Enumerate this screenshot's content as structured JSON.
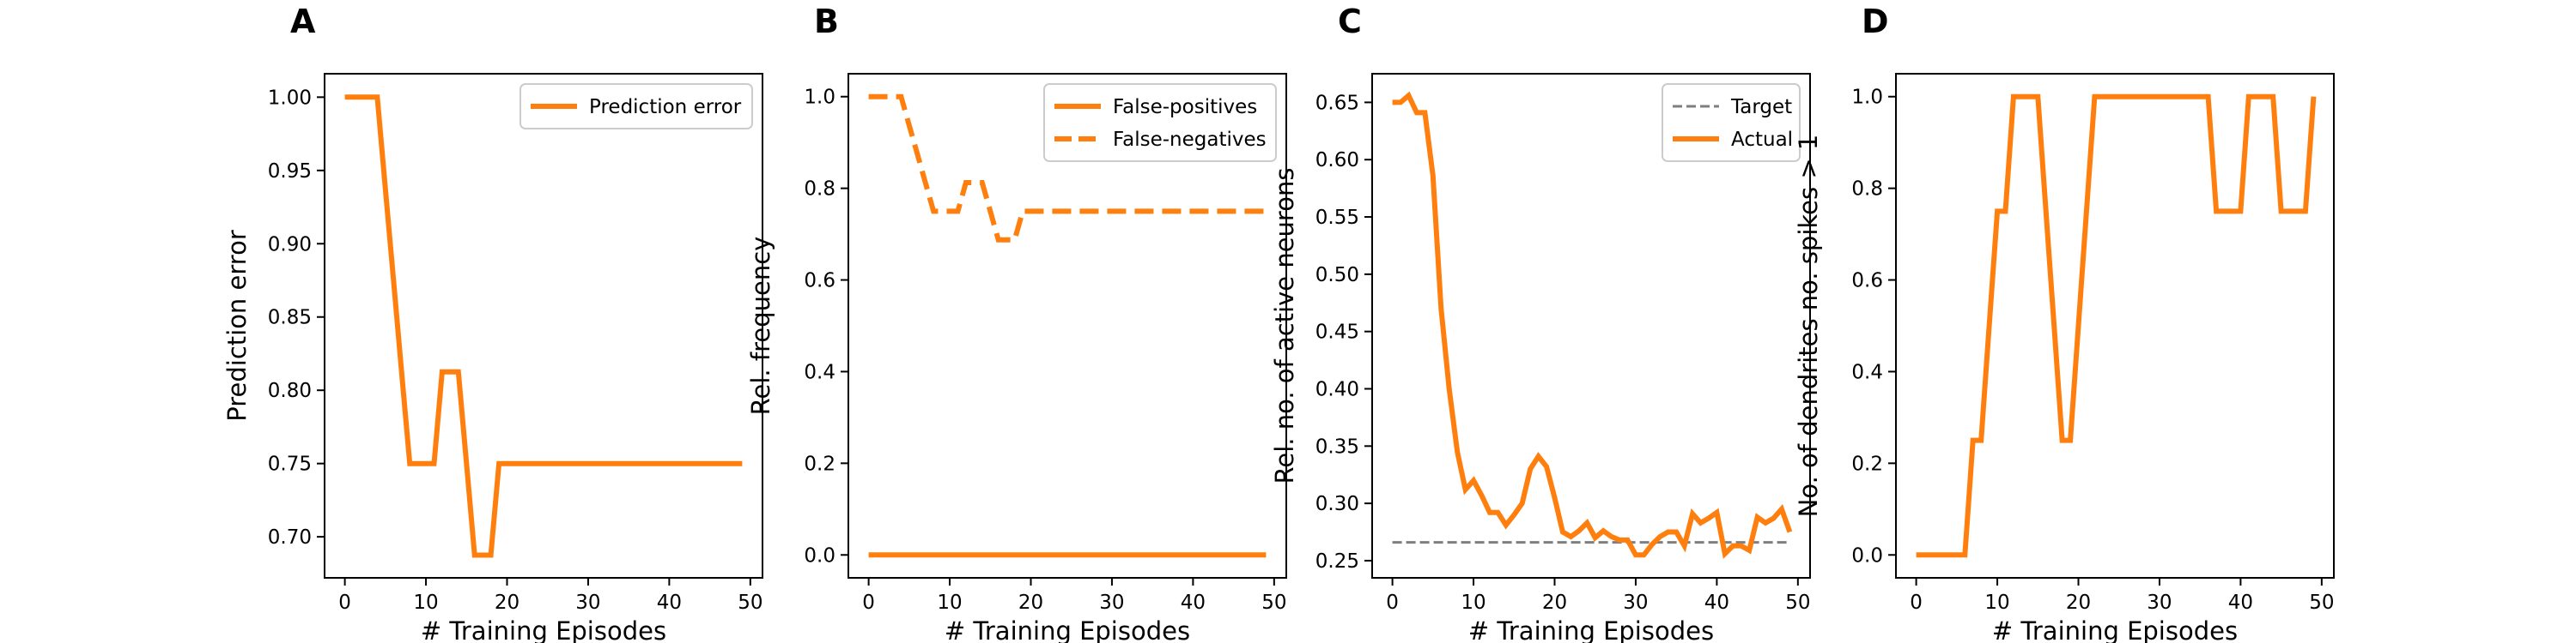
{
  "chart_data": [
    {
      "panel": "A",
      "type": "line",
      "xlabel": "# Training Episodes",
      "ylabel": "Prediction error",
      "xlim": [
        -2.5,
        51.5
      ],
      "ylim": [
        0.672,
        1.016
      ],
      "xticks": [
        0,
        10,
        20,
        30,
        40,
        50
      ],
      "yticks": [
        0.7,
        0.75,
        0.8,
        0.85,
        0.9,
        0.95,
        1.0
      ],
      "ytick_labels": [
        "0.70",
        "0.75",
        "0.80",
        "0.85",
        "0.90",
        "0.95",
        "1.00"
      ],
      "legend_position": "top-right",
      "x": [
        0,
        1,
        2,
        3,
        4,
        5,
        6,
        7,
        8,
        9,
        10,
        11,
        12,
        13,
        14,
        15,
        16,
        17,
        18,
        19,
        20,
        21,
        22,
        23,
        24,
        25,
        26,
        27,
        28,
        29,
        30,
        31,
        32,
        33,
        34,
        35,
        36,
        37,
        38,
        39,
        40,
        41,
        42,
        43,
        44,
        45,
        46,
        47,
        48,
        49
      ],
      "series": [
        {
          "name": "Prediction error",
          "color": "#ff7f0e",
          "style": "solid",
          "values": [
            1,
            1,
            1,
            1,
            1,
            0.9375,
            0.875,
            0.8125,
            0.75,
            0.75,
            0.75,
            0.75,
            0.8125,
            0.8125,
            0.8125,
            0.75,
            0.6875,
            0.6875,
            0.6875,
            0.75,
            0.75,
            0.75,
            0.75,
            0.75,
            0.75,
            0.75,
            0.75,
            0.75,
            0.75,
            0.75,
            0.75,
            0.75,
            0.75,
            0.75,
            0.75,
            0.75,
            0.75,
            0.75,
            0.75,
            0.75,
            0.75,
            0.75,
            0.75,
            0.75,
            0.75,
            0.75,
            0.75,
            0.75,
            0.75,
            0.75
          ]
        }
      ]
    },
    {
      "panel": "B",
      "type": "line",
      "xlabel": "# Training Episodes",
      "ylabel": "Rel. frequency",
      "xlim": [
        -2.5,
        51.5
      ],
      "ylim": [
        -0.05,
        1.05
      ],
      "xticks": [
        0,
        10,
        20,
        30,
        40,
        50
      ],
      "yticks": [
        0.0,
        0.2,
        0.4,
        0.6,
        0.8,
        1.0
      ],
      "ytick_labels": [
        "0.0",
        "0.2",
        "0.4",
        "0.6",
        "0.8",
        "1.0"
      ],
      "legend_position": "top-right",
      "x": [
        0,
        1,
        2,
        3,
        4,
        5,
        6,
        7,
        8,
        9,
        10,
        11,
        12,
        13,
        14,
        15,
        16,
        17,
        18,
        19,
        20,
        21,
        22,
        23,
        24,
        25,
        26,
        27,
        28,
        29,
        30,
        31,
        32,
        33,
        34,
        35,
        36,
        37,
        38,
        39,
        40,
        41,
        42,
        43,
        44,
        45,
        46,
        47,
        48,
        49
      ],
      "series": [
        {
          "name": "False-positives",
          "color": "#ff7f0e",
          "style": "solid",
          "values": [
            0,
            0,
            0,
            0,
            0,
            0,
            0,
            0,
            0,
            0,
            0,
            0,
            0,
            0,
            0,
            0,
            0,
            0,
            0,
            0,
            0,
            0,
            0,
            0,
            0,
            0,
            0,
            0,
            0,
            0,
            0,
            0,
            0,
            0,
            0,
            0,
            0,
            0,
            0,
            0,
            0,
            0,
            0,
            0,
            0,
            0,
            0,
            0,
            0,
            0
          ]
        },
        {
          "name": "False-negatives",
          "color": "#ff7f0e",
          "style": "dashed",
          "values": [
            1,
            1,
            1,
            1,
            1,
            0.9375,
            0.875,
            0.8125,
            0.75,
            0.75,
            0.75,
            0.75,
            0.8125,
            0.8125,
            0.8125,
            0.75,
            0.6875,
            0.6875,
            0.6875,
            0.75,
            0.75,
            0.75,
            0.75,
            0.75,
            0.75,
            0.75,
            0.75,
            0.75,
            0.75,
            0.75,
            0.75,
            0.75,
            0.75,
            0.75,
            0.75,
            0.75,
            0.75,
            0.75,
            0.75,
            0.75,
            0.75,
            0.75,
            0.75,
            0.75,
            0.75,
            0.75,
            0.75,
            0.75,
            0.75,
            0.75
          ]
        }
      ]
    },
    {
      "panel": "C",
      "type": "line",
      "xlabel": "# Training Episodes",
      "ylabel": "Rel. no. of active neurons",
      "xlim": [
        -2.5,
        51.5
      ],
      "ylim": [
        0.235,
        0.675
      ],
      "xticks": [
        0,
        10,
        20,
        30,
        40,
        50
      ],
      "yticks": [
        0.25,
        0.3,
        0.35,
        0.4,
        0.45,
        0.5,
        0.55,
        0.6,
        0.65
      ],
      "ytick_labels": [
        "0.25",
        "0.30",
        "0.35",
        "0.40",
        "0.45",
        "0.50",
        "0.55",
        "0.60",
        "0.65"
      ],
      "legend_position": "top-right",
      "x": [
        0,
        1,
        2,
        3,
        4,
        5,
        6,
        7,
        8,
        9,
        10,
        11,
        12,
        13,
        14,
        15,
        16,
        17,
        18,
        19,
        20,
        21,
        22,
        23,
        24,
        25,
        26,
        27,
        28,
        29,
        30,
        31,
        32,
        33,
        34,
        35,
        36,
        37,
        38,
        39,
        40,
        41,
        42,
        43,
        44,
        45,
        46,
        47,
        48,
        49
      ],
      "series": [
        {
          "name": "Target",
          "color": "#7f7f7f",
          "style": "dashed",
          "values": [
            0.266,
            0.266,
            0.266,
            0.266,
            0.266,
            0.266,
            0.266,
            0.266,
            0.266,
            0.266,
            0.266,
            0.266,
            0.266,
            0.266,
            0.266,
            0.266,
            0.266,
            0.266,
            0.266,
            0.266,
            0.266,
            0.266,
            0.266,
            0.266,
            0.266,
            0.266,
            0.266,
            0.266,
            0.266,
            0.266,
            0.266,
            0.266,
            0.266,
            0.266,
            0.266,
            0.266,
            0.266,
            0.266,
            0.266,
            0.266,
            0.266,
            0.266,
            0.266,
            0.266,
            0.266,
            0.266,
            0.266,
            0.266,
            0.266,
            0.266
          ]
        },
        {
          "name": "Actual",
          "color": "#ff7f0e",
          "style": "solid",
          "values": [
            0.65,
            0.65,
            0.656,
            0.641,
            0.641,
            0.586,
            0.47,
            0.4,
            0.345,
            0.312,
            0.32,
            0.307,
            0.292,
            0.292,
            0.281,
            0.29,
            0.3,
            0.33,
            0.341,
            0.332,
            0.305,
            0.275,
            0.271,
            0.276,
            0.283,
            0.27,
            0.276,
            0.271,
            0.268,
            0.268,
            0.255,
            0.255,
            0.264,
            0.271,
            0.275,
            0.275,
            0.263,
            0.291,
            0.283,
            0.287,
            0.292,
            0.256,
            0.263,
            0.263,
            0.259,
            0.288,
            0.283,
            0.287,
            0.295,
            0.275
          ]
        }
      ]
    },
    {
      "panel": "D",
      "type": "line",
      "xlabel": "# Training Episodes",
      "ylabel": "No. of dendrites no. spikes > 1",
      "xlim": [
        -2.5,
        51.5
      ],
      "ylim": [
        -0.05,
        1.05
      ],
      "xticks": [
        0,
        10,
        20,
        30,
        40,
        50
      ],
      "yticks": [
        0.0,
        0.2,
        0.4,
        0.6,
        0.8,
        1.0
      ],
      "ytick_labels": [
        "0.0",
        "0.2",
        "0.4",
        "0.6",
        "0.8",
        "1.0"
      ],
      "x": [
        0,
        1,
        2,
        3,
        4,
        5,
        6,
        7,
        8,
        9,
        10,
        11,
        12,
        13,
        14,
        15,
        16,
        17,
        18,
        19,
        20,
        21,
        22,
        23,
        24,
        25,
        26,
        27,
        28,
        29,
        30,
        31,
        32,
        33,
        34,
        35,
        36,
        37,
        38,
        39,
        40,
        41,
        42,
        43,
        44,
        45,
        46,
        47,
        48,
        49
      ],
      "series": [
        {
          "color": "#ff7f0e",
          "style": "solid",
          "values": [
            0,
            0,
            0,
            0,
            0,
            0,
            0,
            0.25,
            0.25,
            0.5,
            0.75,
            0.75,
            1,
            1,
            1,
            1,
            0.75,
            0.5,
            0.25,
            0.25,
            0.5,
            0.75,
            1,
            1,
            1,
            1,
            1,
            1,
            1,
            1,
            1,
            1,
            1,
            1,
            1,
            1,
            1,
            0.75,
            0.75,
            0.75,
            0.75,
            1,
            1,
            1,
            1,
            0.75,
            0.75,
            0.75,
            0.75,
            1
          ]
        }
      ]
    }
  ]
}
